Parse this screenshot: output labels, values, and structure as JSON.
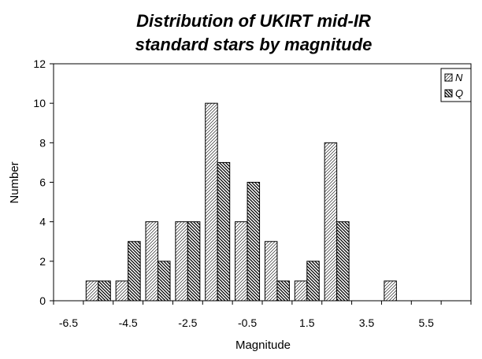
{
  "chart_data": {
    "type": "bar",
    "title_lines": [
      "Distribution of UKIRT mid-IR",
      "standard stars by magnitude"
    ],
    "xlabel": "Magnitude",
    "ylabel": "Number",
    "categories": [
      -6.5,
      -5.5,
      -4.5,
      -3.5,
      -2.5,
      -1.5,
      -0.5,
      0.5,
      1.5,
      2.5,
      3.5,
      4.5,
      5.5,
      6.5
    ],
    "x_tick_labels": [
      "-6.5",
      "-4.5",
      "-2.5",
      "-0.5",
      "1.5",
      "3.5",
      "5.5"
    ],
    "series": [
      {
        "name": "N",
        "values": [
          0,
          1,
          1,
          4,
          4,
          10,
          4,
          3,
          1,
          8,
          0,
          1,
          0,
          0
        ]
      },
      {
        "name": "Q",
        "values": [
          0,
          1,
          3,
          2,
          4,
          7,
          6,
          1,
          2,
          4,
          0,
          0,
          0,
          0
        ]
      }
    ],
    "ylim": [
      0,
      12
    ],
    "yticks": [
      0,
      2,
      4,
      6,
      8,
      10,
      12
    ],
    "legend": "top-right",
    "grid": false
  }
}
